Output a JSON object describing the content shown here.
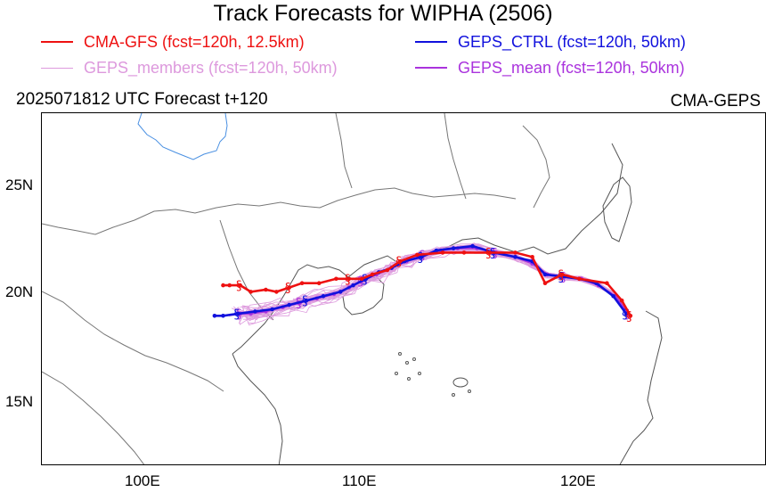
{
  "title": "Track Forecasts for WIPHA (2506)",
  "legend": [
    {
      "label": "CMA-GFS (fcst=120h, 12.5km)",
      "color": "#ee1111"
    },
    {
      "label": "GEPS_CTRL (fcst=120h, 50km)",
      "color": "#1111dd"
    },
    {
      "label": "GEPS_members (fcst=120h, 50km)",
      "color": "#dd99dd"
    },
    {
      "label": "GEPS_mean (fcst=120h, 50km)",
      "color": "#aa33dd"
    }
  ],
  "subtitle_left": "2025071812 UTC Forecast t+120",
  "subtitle_right": "CMA-GEPS",
  "axes": {
    "lon_range": [
      95,
      129
    ],
    "lat_range": [
      12,
      28.2
    ],
    "lon_ticks": [
      {
        "value": 100,
        "label": "100E"
      },
      {
        "value": 110,
        "label": "110E"
      },
      {
        "value": 120,
        "label": "120E"
      }
    ],
    "lat_ticks": [
      {
        "value": 25,
        "label": "25N"
      },
      {
        "value": 20,
        "label": "20N"
      },
      {
        "value": 15,
        "label": "15N"
      }
    ]
  },
  "chart_data": {
    "type": "line",
    "series": [
      {
        "name": "CMA-GFS (fcst=120h, 12.5km)",
        "color": "#ee1111",
        "points": [
          [
            122.6,
            18.9
          ],
          [
            122.2,
            19.6
          ],
          [
            121.5,
            20.4
          ],
          [
            120.2,
            20.6
          ],
          [
            119.4,
            20.8
          ],
          [
            118.6,
            20.4
          ],
          [
            118.0,
            21.6
          ],
          [
            117.2,
            21.8
          ],
          [
            116.0,
            21.8
          ],
          [
            114.8,
            21.8
          ],
          [
            113.8,
            21.8
          ],
          [
            112.6,
            21.7
          ],
          [
            111.8,
            21.4
          ],
          [
            111.2,
            21.0
          ],
          [
            110.5,
            20.8
          ],
          [
            110.0,
            20.6
          ],
          [
            109.4,
            20.6
          ],
          [
            108.8,
            20.6
          ],
          [
            108.0,
            20.4
          ],
          [
            107.2,
            20.4
          ],
          [
            106.6,
            20.2
          ],
          [
            106.0,
            20.0
          ],
          [
            105.5,
            20.1
          ],
          [
            104.8,
            20.0
          ],
          [
            104.3,
            20.3
          ],
          [
            103.8,
            20.3
          ],
          [
            103.5,
            20.3
          ]
        ]
      },
      {
        "name": "GEPS_CTRL (fcst=120h, 50km)",
        "color": "#1111dd",
        "points": [
          [
            122.4,
            19.0
          ],
          [
            121.8,
            19.8
          ],
          [
            121.0,
            20.4
          ],
          [
            120.2,
            20.6
          ],
          [
            119.4,
            20.7
          ],
          [
            118.6,
            20.8
          ],
          [
            118.0,
            21.4
          ],
          [
            117.2,
            21.6
          ],
          [
            116.2,
            21.8
          ],
          [
            115.2,
            22.1
          ],
          [
            114.3,
            22.0
          ],
          [
            113.5,
            21.9
          ],
          [
            112.8,
            21.6
          ],
          [
            112.0,
            21.4
          ],
          [
            111.4,
            21.1
          ],
          [
            110.8,
            20.9
          ],
          [
            110.2,
            20.6
          ],
          [
            109.6,
            20.3
          ],
          [
            109.0,
            20.0
          ],
          [
            108.2,
            19.8
          ],
          [
            107.4,
            19.6
          ],
          [
            106.6,
            19.4
          ],
          [
            105.8,
            19.2
          ],
          [
            105.0,
            19.1
          ],
          [
            104.2,
            19.0
          ],
          [
            103.5,
            18.9
          ],
          [
            103.1,
            18.9
          ]
        ]
      },
      {
        "name": "GEPS_mean (fcst=120h, 50km)",
        "color": "#aa33dd",
        "points": [
          [
            122.5,
            19.0
          ],
          [
            121.9,
            19.8
          ],
          [
            121.1,
            20.3
          ],
          [
            120.3,
            20.6
          ],
          [
            119.5,
            20.7
          ],
          [
            118.7,
            20.8
          ],
          [
            118.0,
            21.3
          ],
          [
            117.2,
            21.6
          ],
          [
            116.3,
            21.8
          ],
          [
            115.4,
            22.0
          ],
          [
            114.5,
            22.0
          ],
          [
            113.7,
            21.9
          ],
          [
            112.9,
            21.7
          ],
          [
            112.1,
            21.4
          ],
          [
            111.4,
            21.1
          ],
          [
            110.7,
            20.8
          ],
          [
            110.0,
            20.5
          ],
          [
            109.4,
            20.2
          ],
          [
            108.7,
            19.9
          ],
          [
            107.9,
            19.7
          ],
          [
            107.1,
            19.5
          ],
          [
            106.3,
            19.3
          ],
          [
            105.5,
            19.1
          ],
          [
            104.8,
            19.0
          ],
          [
            104.3,
            19.0
          ]
        ]
      }
    ],
    "members_count": 30
  }
}
